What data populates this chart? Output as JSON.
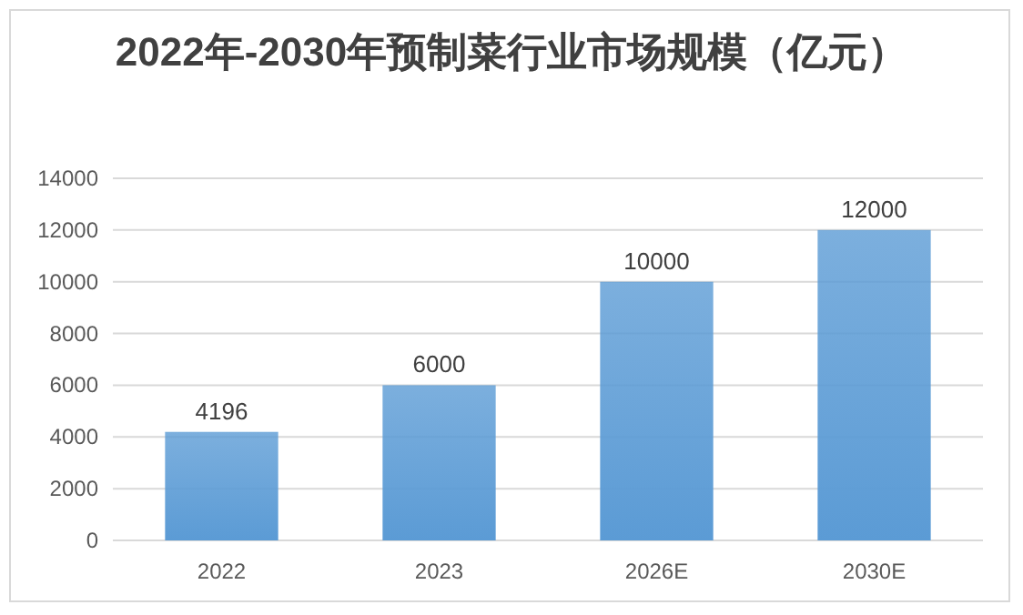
{
  "chart_data": {
    "type": "bar",
    "title": "2022年-2030年预制菜行业市场规模（亿元）",
    "categories": [
      "2022",
      "2023",
      "2026E",
      "2030E"
    ],
    "values": [
      4196,
      6000,
      10000,
      12000
    ],
    "color": "#5b9bd5",
    "ylim": [
      0,
      14000
    ],
    "yticks": [
      0,
      2000,
      4000,
      6000,
      8000,
      10000,
      12000,
      14000
    ],
    "grid": "y",
    "data_labels": true
  }
}
